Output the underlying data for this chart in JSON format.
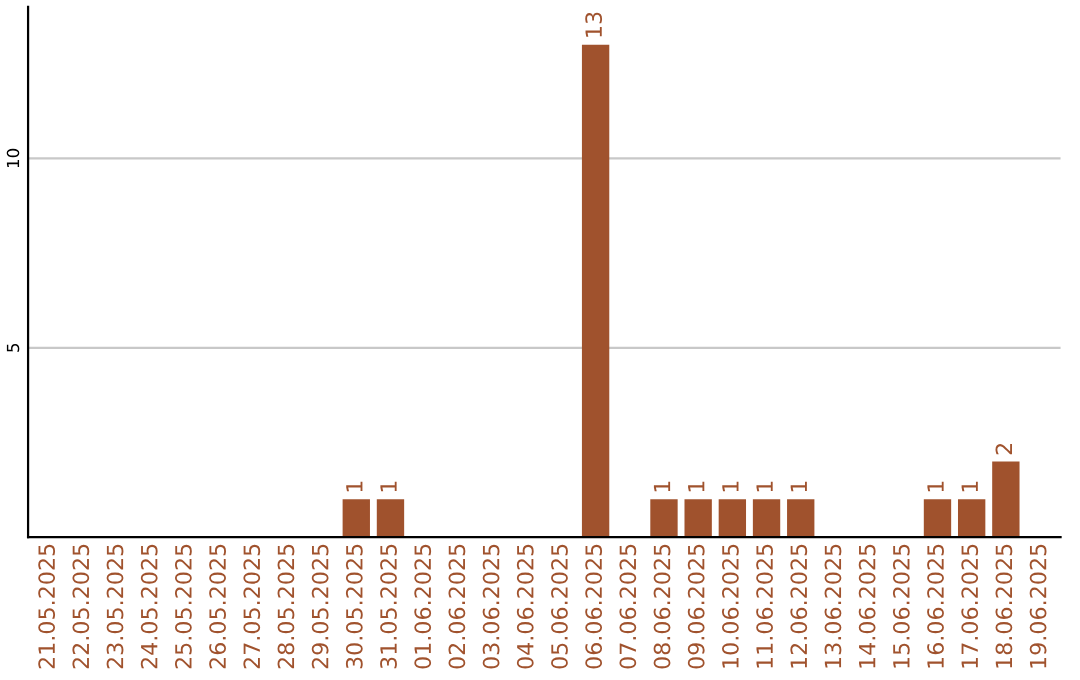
{
  "chart_data": {
    "type": "bar",
    "categories": [
      "21.05.2025",
      "22.05.2025",
      "23.05.2025",
      "24.05.2025",
      "25.05.2025",
      "26.05.2025",
      "27.05.2025",
      "28.05.2025",
      "29.05.2025",
      "30.05.2025",
      "31.05.2025",
      "01.06.2025",
      "02.06.2025",
      "03.06.2025",
      "04.06.2025",
      "05.06.2025",
      "06.06.2025",
      "07.06.2025",
      "08.06.2025",
      "09.06.2025",
      "10.06.2025",
      "11.06.2025",
      "12.06.2025",
      "13.06.2025",
      "14.06.2025",
      "15.06.2025",
      "16.06.2025",
      "17.06.2025",
      "18.06.2025",
      "19.06.2025"
    ],
    "values": [
      0,
      0,
      0,
      0,
      0,
      0,
      0,
      0,
      0,
      1,
      1,
      0,
      0,
      0,
      0,
      0,
      13,
      0,
      1,
      1,
      1,
      1,
      1,
      0,
      0,
      0,
      1,
      1,
      2,
      0
    ],
    "value_labels": [
      null,
      null,
      null,
      null,
      null,
      null,
      null,
      null,
      null,
      "1",
      "1",
      null,
      null,
      null,
      null,
      null,
      "13",
      null,
      "1",
      "1",
      "1",
      "1",
      "1",
      null,
      null,
      null,
      "1",
      "1",
      "2",
      null
    ],
    "color": "#a0522d",
    "ylim": [
      0,
      14
    ],
    "yticks": [
      {
        "value": 0,
        "label": null
      },
      5,
      10
    ],
    "grid": "y"
  }
}
